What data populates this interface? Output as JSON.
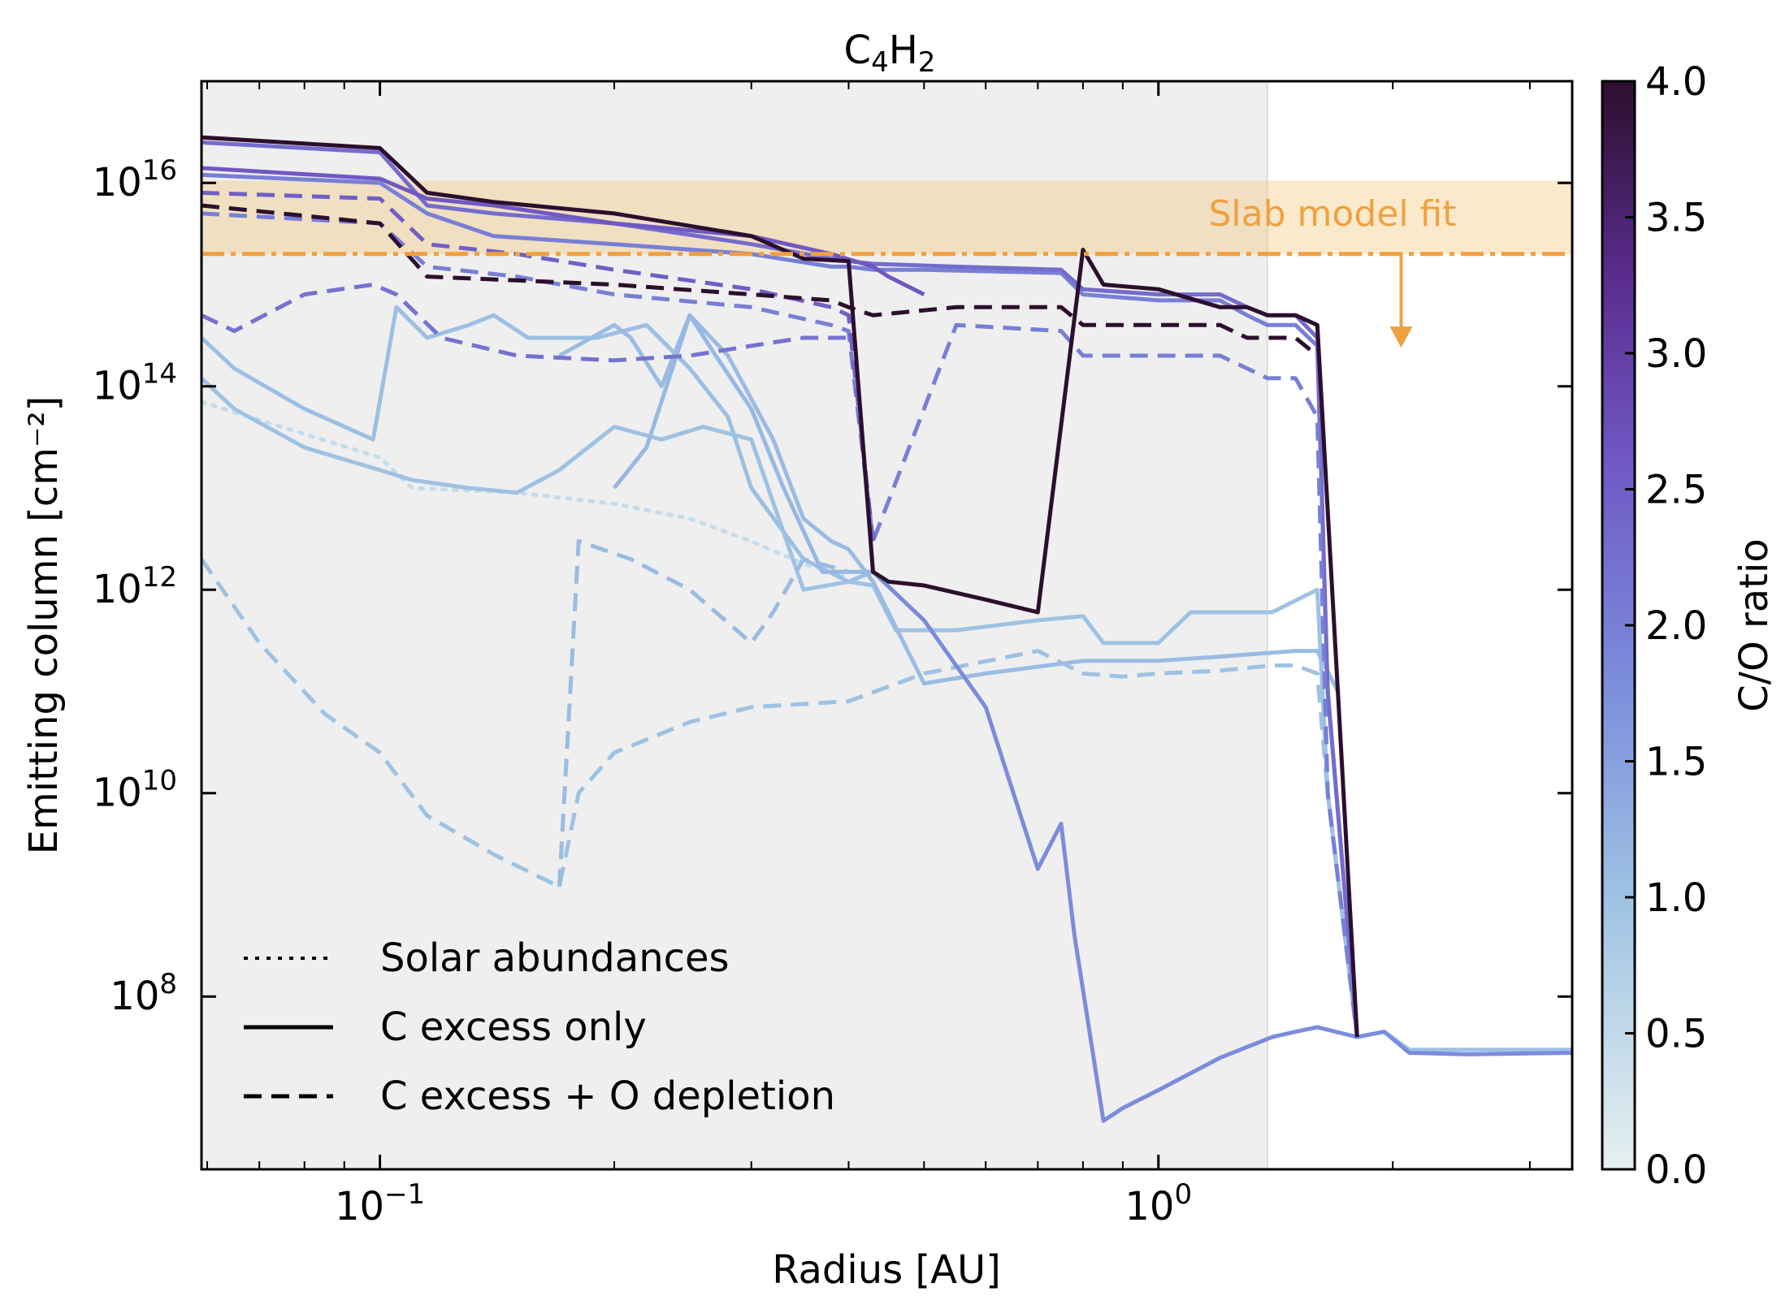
{
  "chart_data": {
    "type": "line",
    "title_base": "C",
    "title_sub1": "4",
    "title_mid": "H",
    "title_sub2": "2",
    "xlabel": "Radius [AU]",
    "ylabel": "Emitting column [cm⁻²]",
    "xscale": "log",
    "yscale": "log",
    "xlim": [
      0.059,
      3.4
    ],
    "ylim": [
      2000000.0,
      1e+17
    ],
    "x_ticks": [
      {
        "value": 0.1,
        "base": "10",
        "exp": "−1"
      },
      {
        "value": 1.0,
        "base": "10",
        "exp": "0"
      }
    ],
    "y_ticks": [
      {
        "value": 100000000.0,
        "base": "10",
        "exp": "8"
      },
      {
        "value": 10000000000.0,
        "base": "10",
        "exp": "10"
      },
      {
        "value": 1000000000000.0,
        "base": "10",
        "exp": "12"
      },
      {
        "value": 100000000000000.0,
        "base": "10",
        "exp": "14"
      },
      {
        "value": 1e+16,
        "base": "10",
        "exp": "16"
      }
    ],
    "shaded_region": {
      "x_from": 0.059,
      "x_to": 1.38,
      "color": "#efefef"
    },
    "slab_fit": {
      "label": "Slab model fit",
      "band": [
        2000000000000000.0,
        1.05e+16
      ],
      "line_value": 2000000000000000.0,
      "arrow_x": 2.05,
      "arrow_to": 240000000000000.0,
      "color": "#f0a040"
    },
    "colorbar": {
      "label": "C/O ratio",
      "min": 0.0,
      "max": 4.0,
      "ticks": [
        "0.0",
        "0.5",
        "1.0",
        "1.5",
        "2.0",
        "2.5",
        "3.0",
        "3.5",
        "4.0"
      ],
      "stops": [
        "#e6f0f0",
        "#9ec2e3",
        "#7b8cdc",
        "#7058c4",
        "#5a2c8e",
        "#2c0f2d"
      ]
    },
    "legend": [
      {
        "style": "dotted",
        "label": "Solar abundances"
      },
      {
        "style": "solid",
        "label": "C excess only"
      },
      {
        "style": "dashed",
        "label": "C excess + O depletion"
      }
    ],
    "series": [
      {
        "name": "solar",
        "co": 0.45,
        "style": "dotted",
        "x": [
          0.059,
          0.1,
          0.11,
          0.15,
          0.2,
          0.25,
          0.3,
          0.35,
          0.4
        ],
        "y": [
          70000000000000.0,
          20000000000000.0,
          10000000000000.0,
          9000000000000.0,
          7000000000000.0,
          5000000000000.0,
          3000000000000.0,
          1800000000000.0,
          1300000000000.0
        ]
      },
      {
        "name": "c_solid_1.0a",
        "co": 1.0,
        "style": "solid",
        "x": [
          0.059,
          0.065,
          0.08,
          0.1,
          0.11,
          0.13,
          0.15,
          0.17,
          0.2,
          0.23,
          0.26,
          0.3,
          0.35,
          0.4,
          0.43,
          0.46,
          0.55,
          0.7,
          0.8,
          0.85,
          1.0,
          1.1,
          1.2,
          1.3,
          1.4,
          1.6,
          1.65,
          1.8,
          1.95,
          2.1,
          2.5,
          3.4
        ],
        "y": [
          120000000000000.0,
          60000000000000.0,
          25000000000000.0,
          15000000000000.0,
          12000000000000.0,
          10000000000000.0,
          9000000000000.0,
          15000000000000.0,
          40000000000000.0,
          30000000000000.0,
          40000000000000.0,
          30000000000000.0,
          1000000000000.0,
          1200000000000.0,
          1100000000000.0,
          400000000000.0,
          400000000000.0,
          500000000000.0,
          550000000000.0,
          300000000000.0,
          300000000000.0,
          600000000000.0,
          600000000000.0,
          600000000000.0,
          600000000000.0,
          1000000000000.0,
          10000000000.0,
          40000000.0,
          45000000.0,
          30000000.0,
          30000000.0,
          30000000.0
        ]
      },
      {
        "name": "c_solid_1.0b",
        "co": 1.05,
        "style": "solid",
        "x": [
          0.059,
          0.065,
          0.08,
          0.098,
          0.105,
          0.115,
          0.13,
          0.14,
          0.155,
          0.17,
          0.19,
          0.22,
          0.25,
          0.28,
          0.3,
          0.35,
          0.4,
          0.43
        ],
        "y": [
          300000000000000.0,
          150000000000000.0,
          60000000000000.0,
          30000000000000.0,
          600000000000000.0,
          300000000000000.0,
          400000000000000.0,
          500000000000000.0,
          300000000000000.0,
          300000000000000.0,
          300000000000000.0,
          400000000000000.0,
          150000000000000.0,
          50000000000000.0,
          10000000000000.0,
          2000000000000.0,
          1200000000000.0,
          1500000000000.0
        ]
      },
      {
        "name": "c_solid_1.1",
        "co": 1.1,
        "style": "solid",
        "x": [
          0.17,
          0.2,
          0.21,
          0.23,
          0.25,
          0.28,
          0.32,
          0.35,
          0.38,
          0.4,
          0.43,
          0.5,
          0.6,
          0.8,
          1.0,
          1.2,
          1.5,
          1.6,
          1.7
        ],
        "y": [
          200000000000000.0,
          400000000000000.0,
          300000000000000.0,
          100000000000000.0,
          500000000000000.0,
          200000000000000.0,
          30000000000000.0,
          5000000000000.0,
          3000000000000.0,
          2500000000000.0,
          1200000000000.0,
          120000000000.0,
          150000000000.0,
          200000000000.0,
          200000000000.0,
          220000000000.0,
          250000000000.0,
          250000000000.0,
          100000000000.0
        ]
      },
      {
        "name": "c_solid_1.2",
        "co": 1.15,
        "style": "solid",
        "x": [
          0.2,
          0.22,
          0.25,
          0.27,
          0.3,
          0.33,
          0.37,
          0.43
        ],
        "y": [
          10000000000000.0,
          25000000000000.0,
          500000000000000.0,
          200000000000000.0,
          60000000000000.0,
          10000000000000.0,
          1500000000000.0,
          1500000000000.0
        ]
      },
      {
        "name": "c_dash_1.0",
        "co": 1.0,
        "style": "dashed",
        "x": [
          0.059,
          0.07,
          0.085,
          0.1,
          0.115,
          0.14,
          0.17,
          0.18,
          0.2,
          0.25,
          0.3,
          0.4,
          0.5,
          0.7,
          0.8,
          0.9,
          1.0,
          1.2,
          1.4,
          1.5,
          1.6,
          1.65,
          1.8
        ],
        "y": [
          2000000000000.0,
          300000000000.0,
          60000000000.0,
          25000000000.0,
          6000000000.0,
          2500000000.0,
          1200000000.0,
          10000000000.0,
          25000000000.0,
          50000000000.0,
          70000000000.0,
          80000000000.0,
          150000000000.0,
          250000000000.0,
          150000000000.0,
          140000000000.0,
          150000000000.0,
          160000000000.0,
          180000000000.0,
          180000000000.0,
          150000000000.0,
          10000000000.0,
          40000000.0
        ]
      },
      {
        "name": "c_dash_1.1",
        "co": 1.1,
        "style": "dashed",
        "x": [
          0.17,
          0.18,
          0.21,
          0.25,
          0.3,
          0.32,
          0.35,
          0.4
        ],
        "y": [
          1200000000.0,
          3000000000000.0,
          2000000000000.0,
          1000000000000.0,
          300000000000.0,
          600000000000.0,
          2000000000000.0,
          1500000000000.0
        ]
      },
      {
        "name": "c_solid_1.8",
        "co": 1.8,
        "style": "solid",
        "x": [
          0.43,
          0.5,
          0.6,
          0.7,
          0.75,
          0.78,
          0.85,
          0.9,
          1.0,
          1.2,
          1.4,
          1.5,
          1.6,
          1.8,
          1.95,
          2.1,
          2.5,
          3.4
        ],
        "y": [
          1500000000000.0,
          500000000000.0,
          70000000000.0,
          1800000000.0,
          5000000000.0,
          400000000.0,
          6000000.0,
          8000000.0,
          12000000.0,
          25000000.0,
          40000000.0,
          45000000.0,
          50000000.0,
          40000000.0,
          45000000.0,
          28000000.0,
          27000000.0,
          28000000.0
        ]
      },
      {
        "name": "c_solid_2.0",
        "co": 2.0,
        "style": "solid",
        "x": [
          0.059,
          0.1,
          0.115,
          0.14,
          0.2,
          0.3,
          0.38,
          0.4,
          0.43,
          0.5,
          0.75,
          0.8,
          1.0,
          1.2,
          1.3,
          1.38,
          1.5,
          1.6,
          1.65,
          1.8
        ],
        "y": [
          1.2e+16,
          1e+16,
          5000000000000000.0,
          3000000000000000.0,
          2500000000000000.0,
          2000000000000000.0,
          1500000000000000.0,
          1500000000000000.0,
          1400000000000000.0,
          1400000000000000.0,
          1300000000000000.0,
          800000000000000.0,
          700000000000000.0,
          700000000000000.0,
          500000000000000.0,
          400000000000000.0,
          400000000000000.0,
          250000000000000.0,
          100000000000.0,
          40000000.0
        ]
      },
      {
        "name": "c_solid_2.3",
        "co": 2.3,
        "style": "solid",
        "x": [
          0.059,
          0.1,
          0.115,
          0.14,
          0.2,
          0.3,
          0.38,
          0.4,
          0.43,
          0.55,
          0.75,
          0.8,
          1.0,
          1.2,
          1.3,
          1.38,
          1.5,
          1.6,
          1.65,
          1.8
        ],
        "y": [
          2.5e+16,
          2e+16,
          6000000000000000.0,
          5000000000000000.0,
          4000000000000000.0,
          2500000000000000.0,
          1800000000000000.0,
          1700000000000000.0,
          1600000000000000.0,
          1500000000000000.0,
          1400000000000000.0,
          900000000000000.0,
          800000000000000.0,
          800000000000000.0,
          600000000000000.0,
          500000000000000.0,
          500000000000000.0,
          300000000000000.0,
          100000000000.0,
          40000000.0
        ]
      },
      {
        "name": "c_solid_2.6",
        "co": 2.6,
        "style": "solid",
        "x": [
          0.059,
          0.1,
          0.115,
          0.14,
          0.2,
          0.3,
          0.38,
          0.43,
          0.45,
          0.5
        ],
        "y": [
          1.4e+16,
          1.1e+16,
          7000000000000000.0,
          6000000000000000.0,
          4000000000000000.0,
          3000000000000000.0,
          2000000000000000.0,
          1500000000000000.0,
          1200000000000000.0,
          800000000000000.0
        ]
      },
      {
        "name": "c_dash_2.0",
        "co": 2.0,
        "style": "dashed",
        "x": [
          0.059,
          0.1,
          0.115,
          0.15,
          0.2,
          0.3,
          0.38,
          0.4,
          0.43,
          0.55,
          0.75,
          0.8,
          1.0,
          1.2,
          1.3,
          1.38,
          1.5,
          1.6,
          1.65,
          1.8
        ],
        "y": [
          5000000000000000.0,
          4000000000000000.0,
          1500000000000000.0,
          1200000000000000.0,
          800000000000000.0,
          600000000000000.0,
          400000000000000.0,
          350000000000000.0,
          3000000000000.0,
          400000000000000.0,
          350000000000000.0,
          200000000000000.0,
          200000000000000.0,
          200000000000000.0,
          150000000000000.0,
          120000000000000.0,
          120000000000000.0,
          50000000000000.0,
          10000000000.0,
          40000000.0
        ]
      },
      {
        "name": "c_dash_2.2",
        "co": 2.2,
        "style": "dashed",
        "x": [
          0.059,
          0.065,
          0.08,
          0.098,
          0.105,
          0.12,
          0.15,
          0.2,
          0.25,
          0.3,
          0.35,
          0.4
        ],
        "y": [
          500000000000000.0,
          350000000000000.0,
          800000000000000.0,
          1000000000000000.0,
          800000000000000.0,
          300000000000000.0,
          200000000000000.0,
          180000000000000.0,
          200000000000000.0,
          250000000000000.0,
          300000000000000.0,
          300000000000000.0
        ]
      },
      {
        "name": "c_dash_2.5",
        "co": 2.5,
        "style": "dashed",
        "x": [
          0.059,
          0.1,
          0.115,
          0.15,
          0.2,
          0.3,
          0.38,
          0.4,
          0.43
        ],
        "y": [
          8000000000000000.0,
          7000000000000000.0,
          2500000000000000.0,
          2000000000000000.0,
          1400000000000000.0,
          900000000000000.0,
          600000000000000.0,
          500000000000000.0,
          3000000000000.0
        ]
      },
      {
        "name": "c_solid_4.0",
        "co": 4.0,
        "style": "solid",
        "x": [
          0.059,
          0.1,
          0.115,
          0.14,
          0.2,
          0.3,
          0.35,
          0.4,
          0.43,
          0.45,
          0.5,
          0.6,
          0.7,
          0.8,
          0.85,
          1.0,
          1.2,
          1.3,
          1.38,
          1.5,
          1.6,
          1.7,
          1.8
        ],
        "y": [
          2.8e+16,
          2.2e+16,
          8000000000000000.0,
          6500000000000000.0,
          5000000000000000.0,
          3000000000000000.0,
          1800000000000000.0,
          1700000000000000.0,
          1500000000000.0,
          1200000000000.0,
          1100000000000.0,
          800000000000.0,
          600000000000.0,
          2200000000000000.0,
          1000000000000000.0,
          900000000000000.0,
          600000000000000.0,
          600000000000000.0,
          500000000000000.0,
          500000000000000.0,
          400000000000000.0,
          100000000000.0,
          40000000.0
        ]
      },
      {
        "name": "c_dash_4.0",
        "co": 4.0,
        "style": "dashed",
        "x": [
          0.059,
          0.1,
          0.115,
          0.15,
          0.2,
          0.3,
          0.38,
          0.4,
          0.43,
          0.55,
          0.75,
          0.8,
          1.0,
          1.2,
          1.3,
          1.38,
          1.5,
          1.6
        ],
        "y": [
          6000000000000000.0,
          4000000000000000.0,
          1200000000000000.0,
          1100000000000000.0,
          1000000000000000.0,
          800000000000000.0,
          700000000000000.0,
          600000000000000.0,
          500000000000000.0,
          600000000000000.0,
          600000000000000.0,
          400000000000000.0,
          400000000000000.0,
          400000000000000.0,
          300000000000000.0,
          300000000000000.0,
          300000000000000.0,
          200000000000000.0
        ]
      }
    ]
  }
}
